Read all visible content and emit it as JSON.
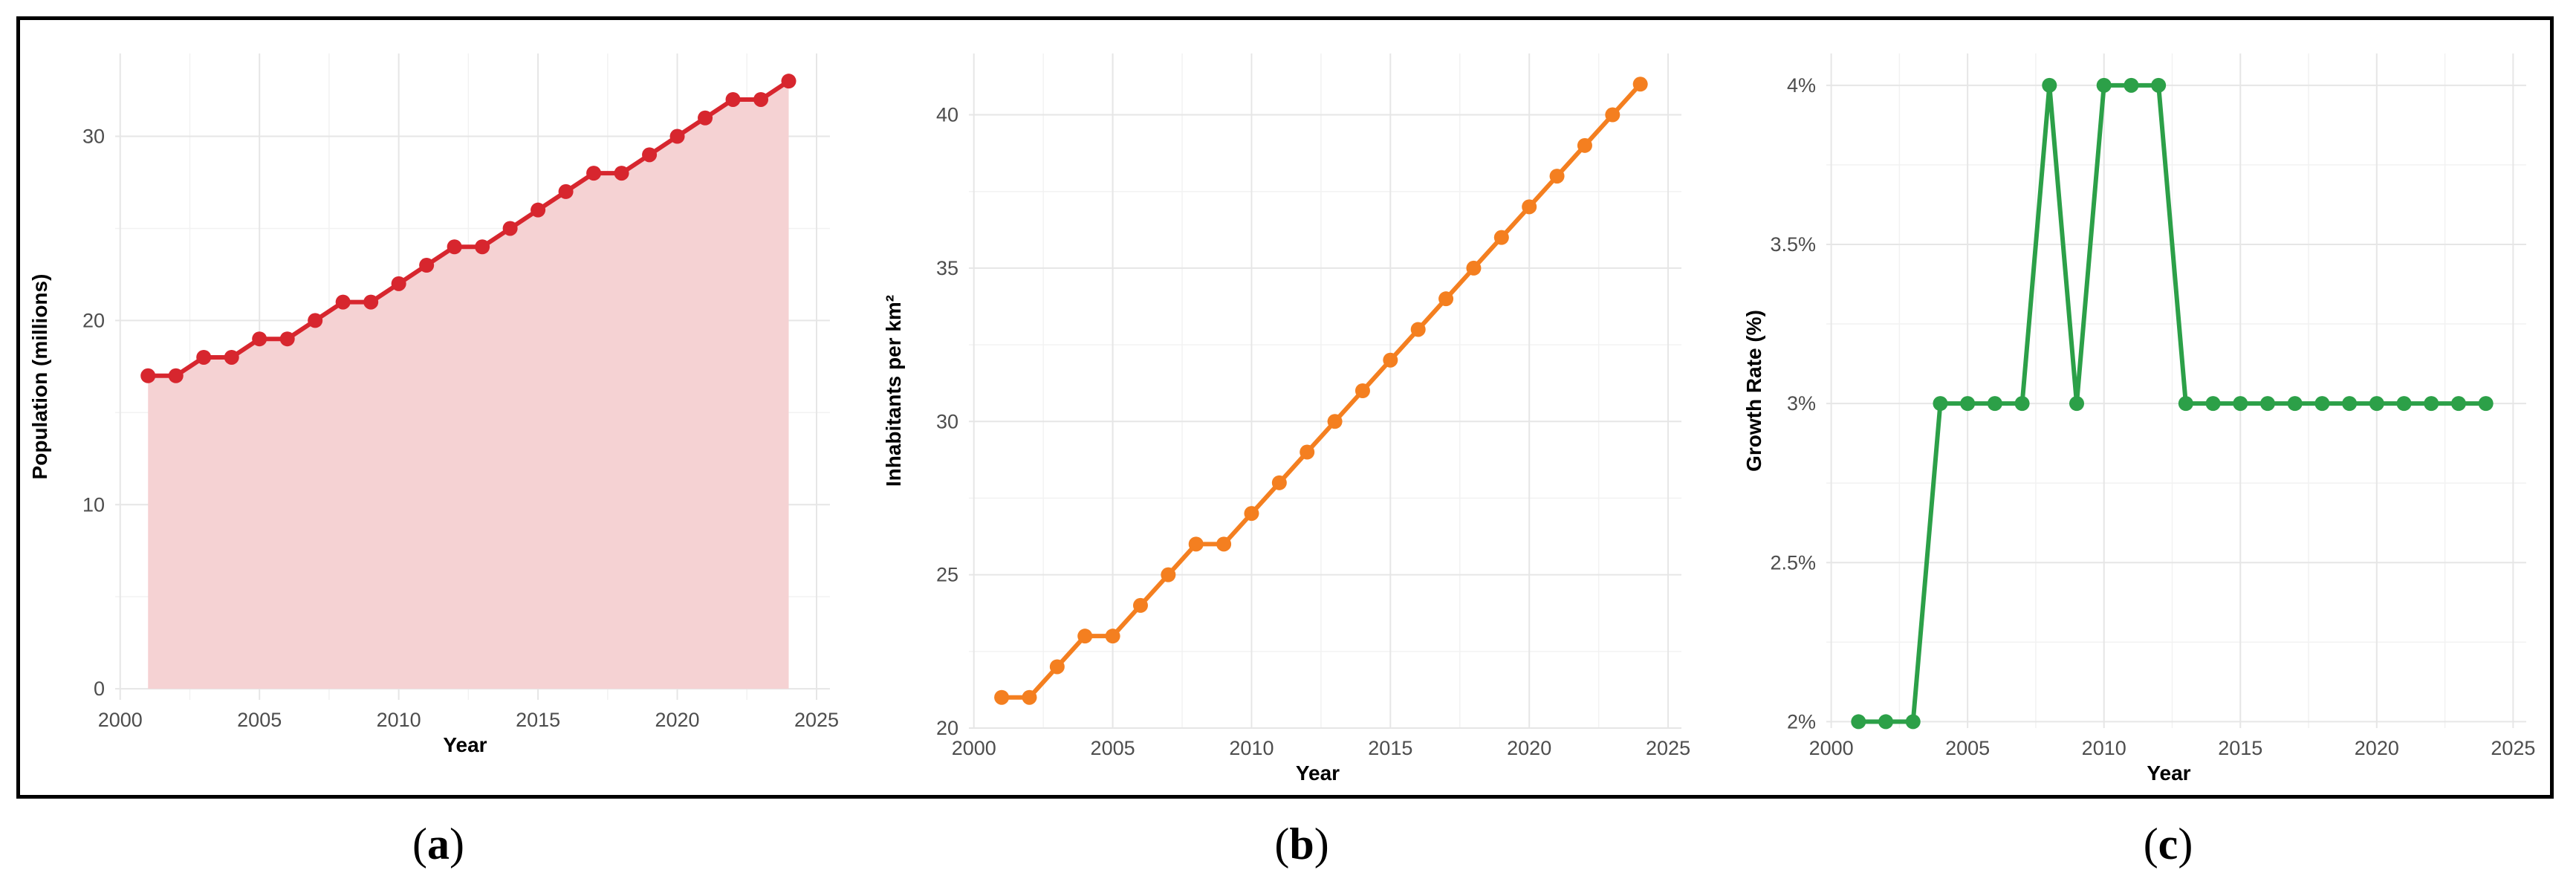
{
  "figure": {
    "captions": [
      {
        "open": "(",
        "letter": "a",
        "close": ")"
      },
      {
        "open": "(",
        "letter": "b",
        "close": ")"
      },
      {
        "open": "(",
        "letter": "c",
        "close": ")"
      }
    ]
  },
  "chart_data": [
    {
      "type": "area",
      "title": "",
      "xlabel": "Year",
      "ylabel": "Population (millions)",
      "xlim": [
        2000,
        2025
      ],
      "ylim": [
        0,
        33
      ],
      "x_ticks": [
        2000,
        2005,
        2010,
        2015,
        2020,
        2025
      ],
      "y_ticks": [
        0,
        10,
        20,
        30
      ],
      "y_tick_labels": [
        "0",
        "10",
        "20",
        "30"
      ],
      "grid": true,
      "legend": "none",
      "line_color": "#d7262e",
      "fill_color": "#f5d2d3",
      "series": [
        {
          "x": [
            2001,
            2002,
            2003,
            2004,
            2005,
            2006,
            2007,
            2008,
            2009,
            2010,
            2011,
            2012,
            2013,
            2014,
            2015,
            2016,
            2017,
            2018,
            2019,
            2020,
            2021,
            2022,
            2023,
            2024
          ],
          "y": [
            17,
            17,
            18,
            18,
            19,
            19,
            20,
            21,
            21,
            22,
            23,
            24,
            24,
            25,
            26,
            27,
            28,
            28,
            29,
            30,
            31,
            32,
            32,
            33
          ]
        }
      ]
    },
    {
      "type": "line",
      "title": "",
      "xlabel": "Year",
      "ylabel": "Inhabitants per km²",
      "xlim": [
        2000,
        2025
      ],
      "ylim": [
        20,
        41
      ],
      "x_ticks": [
        2000,
        2005,
        2010,
        2015,
        2020,
        2025
      ],
      "y_ticks": [
        20,
        25,
        30,
        35,
        40
      ],
      "y_tick_labels": [
        "20",
        "25",
        "30",
        "35",
        "40"
      ],
      "grid": true,
      "legend": "none",
      "line_color": "#f47f20",
      "series": [
        {
          "x": [
            2001,
            2002,
            2003,
            2004,
            2005,
            2006,
            2007,
            2008,
            2009,
            2010,
            2011,
            2012,
            2013,
            2014,
            2015,
            2016,
            2017,
            2018,
            2019,
            2020,
            2021,
            2022,
            2023,
            2024
          ],
          "y": [
            21,
            21,
            22,
            23,
            23,
            24,
            25,
            26,
            26,
            27,
            28,
            29,
            30,
            31,
            32,
            33,
            34,
            35,
            36,
            37,
            38,
            39,
            40,
            41
          ]
        }
      ]
    },
    {
      "type": "line",
      "title": "",
      "xlabel": "Year",
      "ylabel": "Growth Rate (%)",
      "xlim": [
        2000,
        2025
      ],
      "ylim": [
        2,
        4
      ],
      "x_ticks": [
        2000,
        2005,
        2010,
        2015,
        2020,
        2025
      ],
      "y_ticks": [
        2,
        2.5,
        3,
        3.5,
        4
      ],
      "y_tick_labels": [
        "2%",
        "2.5%",
        "3%",
        "3.5%",
        "4%"
      ],
      "grid": true,
      "legend": "none",
      "line_color": "#2ca048",
      "series": [
        {
          "x": [
            2001,
            2002,
            2003,
            2004,
            2005,
            2006,
            2007,
            2008,
            2009,
            2010,
            2011,
            2012,
            2013,
            2014,
            2015,
            2016,
            2017,
            2018,
            2019,
            2020,
            2021,
            2022,
            2023,
            2024
          ],
          "y": [
            2,
            2,
            2,
            3,
            3,
            3,
            3,
            4,
            3,
            4,
            4,
            4,
            3,
            3,
            3,
            3,
            3,
            3,
            3,
            3,
            3,
            3,
            3,
            3
          ]
        }
      ]
    }
  ]
}
